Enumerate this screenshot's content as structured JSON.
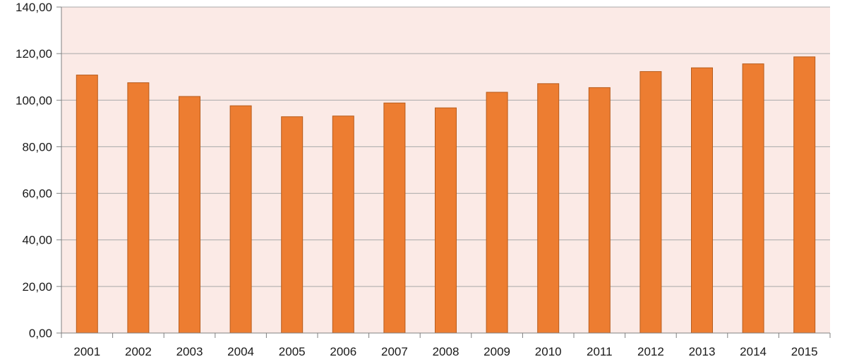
{
  "chart_data": {
    "type": "bar",
    "categories": [
      "2001",
      "2002",
      "2003",
      "2004",
      "2005",
      "2006",
      "2007",
      "2008",
      "2009",
      "2010",
      "2011",
      "2012",
      "2013",
      "2014",
      "2015"
    ],
    "series": [
      {
        "values": [
          110.8,
          107.5,
          101.6,
          97.6,
          92.9,
          93.2,
          98.8,
          96.7,
          103.4,
          107.1,
          105.4,
          112.3,
          113.9,
          115.6,
          118.6
        ],
        "color": "#ed7d31",
        "border_color": "#b85c1c"
      }
    ],
    "y_ticks": [
      "0,00",
      "20,00",
      "40,00",
      "60,00",
      "80,00",
      "100,00",
      "120,00",
      "140,00"
    ],
    "ylim": [
      0,
      140
    ],
    "y_step": 20,
    "title": "",
    "xlabel": "",
    "ylabel": "",
    "grid": true,
    "legend": "none",
    "plot_background": "#fbeae6",
    "gridline_color": "#a8a8a8"
  }
}
